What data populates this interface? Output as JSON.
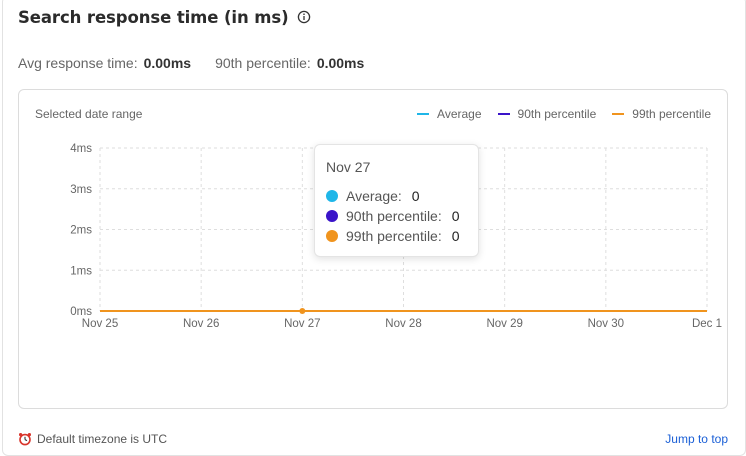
{
  "header": {
    "title": "Search response time (in ms)",
    "info_icon": "info-icon"
  },
  "stats": {
    "avg_label": "Avg response time:",
    "avg_value": "0.00ms",
    "p90_label": "90th percentile:",
    "p90_value": "0.00ms"
  },
  "chart_card": {
    "range_label": "Selected date range",
    "legend": [
      {
        "label": "Average",
        "color": "#1fb6e8"
      },
      {
        "label": "90th percentile",
        "color": "#3a14c9"
      },
      {
        "label": "99th percentile",
        "color": "#f0941e"
      }
    ]
  },
  "chart_data": {
    "type": "line",
    "x": [
      "Nov 25",
      "Nov 26",
      "Nov 27",
      "Nov 28",
      "Nov 29",
      "Nov 30",
      "Dec 1"
    ],
    "y_ticks": [
      "0ms",
      "1ms",
      "2ms",
      "3ms",
      "4ms"
    ],
    "ylim": [
      0,
      4
    ],
    "grid": true,
    "legend_position": "top-right",
    "series": [
      {
        "name": "Average",
        "color": "#1fb6e8",
        "values": [
          0,
          0,
          0,
          0,
          0,
          0,
          0
        ]
      },
      {
        "name": "90th percentile",
        "color": "#3a14c9",
        "values": [
          0,
          0,
          0,
          0,
          0,
          0,
          0
        ]
      },
      {
        "name": "99th percentile",
        "color": "#f0941e",
        "values": [
          0,
          0,
          0,
          0,
          0,
          0,
          0
        ]
      }
    ]
  },
  "tooltip": {
    "title": "Nov 27",
    "rows": [
      {
        "label": "Average:",
        "value": "0",
        "color": "#1fb6e8"
      },
      {
        "label": "90th percentile:",
        "value": "0",
        "color": "#3a14c9"
      },
      {
        "label": "99th percentile:",
        "value": "0",
        "color": "#f0941e"
      }
    ]
  },
  "footer": {
    "timezone_text": "Default timezone is UTC",
    "clock_icon": "alarm-clock-icon",
    "jump_label": "Jump to top"
  }
}
